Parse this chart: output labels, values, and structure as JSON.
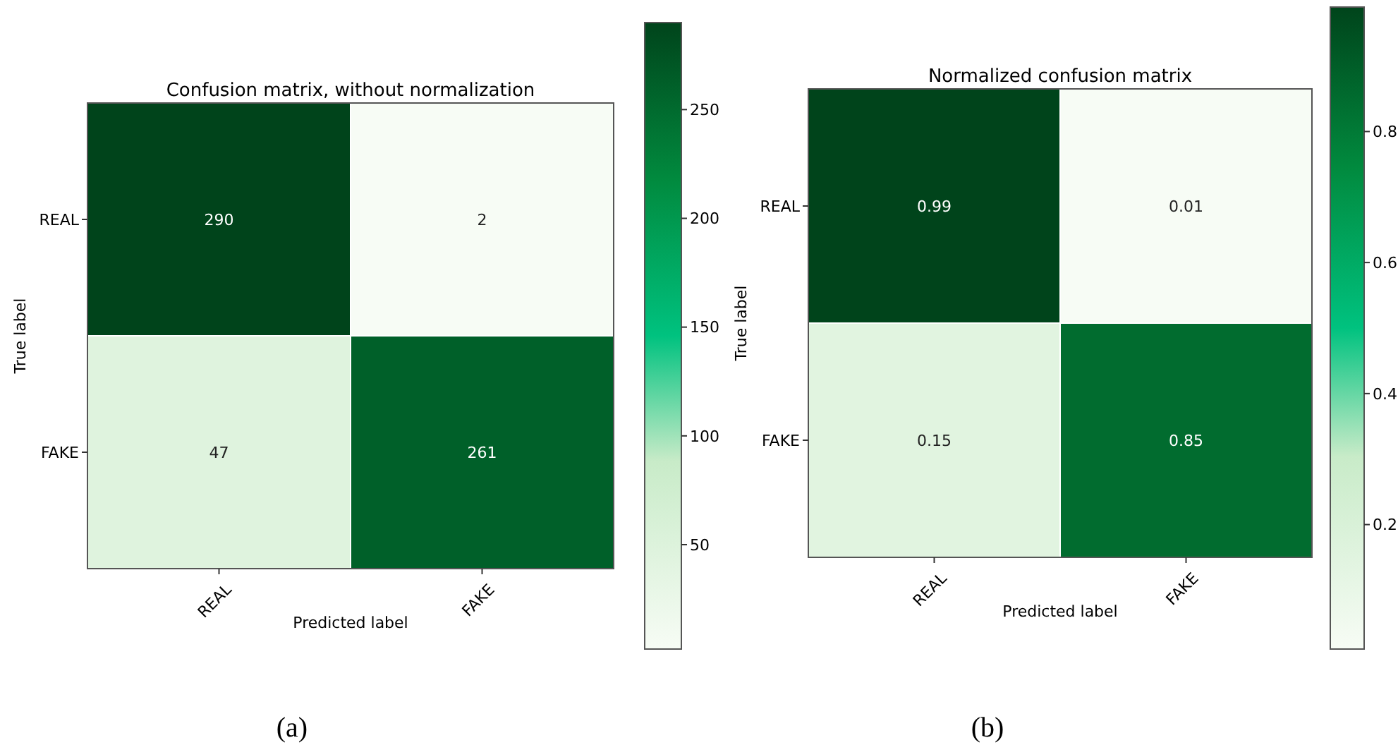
{
  "chart_data": [
    {
      "type": "heatmap",
      "title": "Confusion matrix, without normalization",
      "xlabel": "Predicted label",
      "ylabel": "True label",
      "categories": [
        "REAL",
        "FAKE"
      ],
      "y_categories": [
        "REAL",
        "FAKE"
      ],
      "cells": [
        [
          290,
          2
        ],
        [
          47,
          261
        ]
      ],
      "clim": [
        2,
        290
      ],
      "cticks": [
        50,
        100,
        150,
        200,
        250
      ],
      "data_labels": true,
      "annotations": [
        "(a)"
      ]
    },
    {
      "type": "heatmap",
      "title": "Normalized confusion matrix",
      "xlabel": "Predicted label",
      "ylabel": "True label",
      "categories": [
        "REAL",
        "FAKE"
      ],
      "y_categories": [
        "REAL",
        "FAKE"
      ],
      "cells": [
        [
          0.99,
          0.01
        ],
        [
          0.15,
          0.85
        ]
      ],
      "clim": [
        0.01,
        0.99
      ],
      "cticks": [
        0.2,
        0.4,
        0.6,
        0.8
      ],
      "data_labels": true,
      "annotations": [
        "(b)"
      ]
    }
  ]
}
